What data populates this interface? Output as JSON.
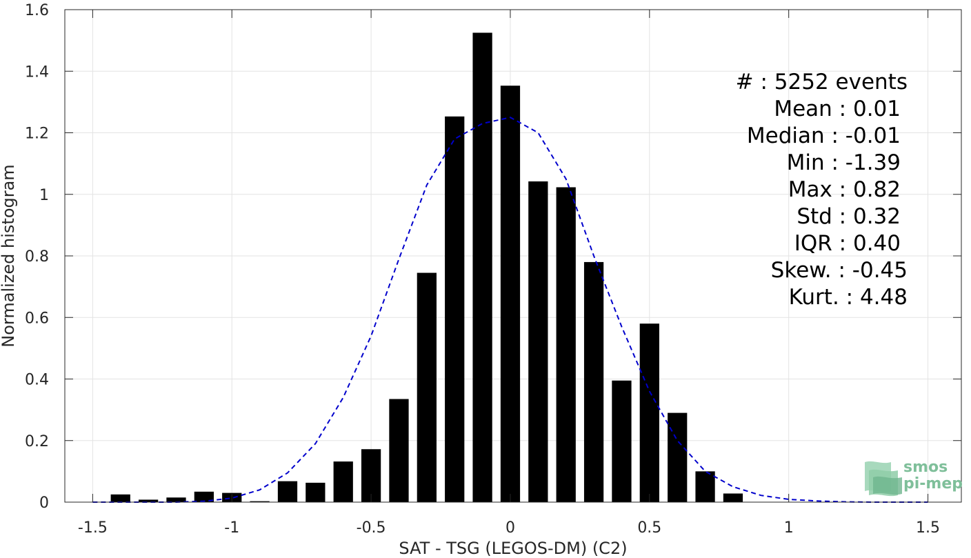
{
  "chart_data": {
    "type": "bar",
    "xlabel": "SAT - TSG (LEGOS-DM) (C2)",
    "ylabel": "Normalized histogram",
    "xlim": [
      -1.6,
      1.62
    ],
    "ylim": [
      0,
      1.6
    ],
    "xticks": [
      -1.5,
      -1,
      -0.5,
      0,
      0.5,
      1,
      1.5
    ],
    "xtick_labels": [
      "-1.5",
      "-1",
      "-0.5",
      "0",
      "0.5",
      "1",
      "1.5"
    ],
    "yticks": [
      0,
      0.2,
      0.4,
      0.6,
      0.8,
      1,
      1.2,
      1.4,
      1.6
    ],
    "ytick_labels": [
      "0",
      "0.2",
      "0.4",
      "0.6",
      "0.8",
      "1",
      "1.2",
      "1.4",
      "1.6"
    ],
    "grid": true,
    "bar_width": 0.07,
    "bar_color": "#000000",
    "bars": {
      "x": [
        -1.4,
        -1.3,
        -1.2,
        -1.1,
        -1.0,
        -0.9,
        -0.8,
        -0.7,
        -0.6,
        -0.5,
        -0.4,
        -0.3,
        -0.2,
        -0.1,
        0.0,
        0.1,
        0.2,
        0.3,
        0.4,
        0.5,
        0.6,
        0.7,
        0.8
      ],
      "values": [
        0.025,
        0.008,
        0.015,
        0.034,
        0.03,
        0.003,
        0.068,
        0.063,
        0.132,
        0.172,
        0.335,
        0.745,
        1.253,
        1.525,
        1.353,
        1.042,
        1.023,
        0.78,
        0.395,
        0.58,
        0.29,
        0.1,
        0.028
      ]
    },
    "fit_curve": {
      "style": "dashed",
      "color": "#0000cc",
      "x": [
        -1.5,
        -1.4,
        -1.3,
        -1.2,
        -1.1,
        -1.0,
        -0.9,
        -0.8,
        -0.7,
        -0.6,
        -0.5,
        -0.4,
        -0.3,
        -0.2,
        -0.1,
        0.0,
        0.1,
        0.2,
        0.3,
        0.4,
        0.5,
        0.6,
        0.7,
        0.8,
        0.9,
        1.0,
        1.1,
        1.2,
        1.3,
        1.4,
        1.5
      ],
      "y": [
        0.0,
        0.0,
        0.0,
        0.0,
        0.003,
        0.013,
        0.04,
        0.095,
        0.19,
        0.34,
        0.54,
        0.79,
        1.03,
        1.18,
        1.23,
        1.25,
        1.2,
        1.05,
        0.8,
        0.57,
        0.36,
        0.2,
        0.1,
        0.05,
        0.022,
        0.009,
        0.004,
        0.001,
        0.0,
        0.0,
        0.0
      ]
    },
    "stats": [
      {
        "label": "#  : 5252 events",
        "anchor": "end",
        "right": 1316
      },
      {
        "label": "Mean : 0.01",
        "anchor": "end",
        "right": 1306
      },
      {
        "label": "Median : -0.01",
        "anchor": "end",
        "right": 1306
      },
      {
        "label": "Min : -1.39",
        "anchor": "end",
        "right": 1306
      },
      {
        "label": "Max : 0.82",
        "anchor": "end",
        "right": 1306
      },
      {
        "label": "Std : 0.32",
        "anchor": "end",
        "right": 1306
      },
      {
        "label": "IQR : 0.40",
        "anchor": "end",
        "right": 1306
      },
      {
        "label": "Skew. : -0.45",
        "anchor": "end",
        "right": 1316
      },
      {
        "label": "Kurt. : 4.48",
        "anchor": "end",
        "right": 1316
      }
    ],
    "stats_placement": "top-right"
  },
  "logo": {
    "line1": "smos",
    "line2": "pi-mep",
    "color": "#7fbf9a"
  }
}
